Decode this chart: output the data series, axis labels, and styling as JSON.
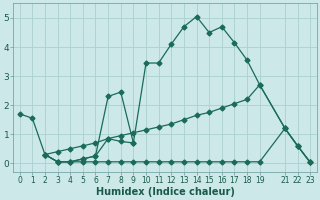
{
  "xlabel": "Humidex (Indice chaleur)",
  "bg_color": "#cce8e8",
  "grid_color": "#aad0d0",
  "line_color": "#1a6b5a",
  "xlim": [
    -0.5,
    23.5
  ],
  "ylim": [
    -0.3,
    5.5
  ],
  "xticks": [
    0,
    1,
    2,
    3,
    4,
    5,
    6,
    7,
    8,
    9,
    10,
    11,
    12,
    13,
    14,
    15,
    16,
    17,
    18,
    19,
    21,
    22,
    23
  ],
  "yticks": [
    0,
    1,
    2,
    3,
    4,
    5
  ],
  "curve1_x": [
    0,
    1,
    2,
    3,
    4,
    5,
    6,
    7,
    8,
    9,
    10,
    11,
    12,
    13,
    14,
    15,
    16,
    17,
    18,
    19,
    21,
    22,
    23
  ],
  "curve1_y": [
    1.7,
    1.55,
    0.3,
    0.05,
    0.05,
    0.15,
    0.25,
    0.85,
    0.75,
    0.7,
    3.45,
    3.45,
    4.1,
    4.7,
    5.05,
    4.5,
    4.7,
    4.15,
    3.55,
    2.7,
    1.2,
    0.6,
    0.03
  ],
  "curve2_x": [
    2,
    3,
    4,
    5,
    6,
    7,
    8,
    9
  ],
  "curve2_y": [
    0.3,
    0.05,
    0.05,
    0.15,
    0.25,
    2.3,
    2.45,
    0.7
  ],
  "curve3_x": [
    2,
    3,
    4,
    5,
    6,
    7,
    8,
    9,
    10,
    11,
    12,
    13,
    14,
    15,
    16,
    17,
    18,
    19,
    21,
    22,
    23
  ],
  "curve3_y": [
    0.3,
    0.4,
    0.5,
    0.6,
    0.7,
    0.85,
    0.95,
    1.05,
    1.15,
    1.25,
    1.35,
    1.5,
    1.65,
    1.75,
    1.9,
    2.05,
    2.2,
    2.7,
    1.2,
    0.6,
    0.03
  ],
  "curve4_x": [
    2,
    3,
    4,
    5,
    6,
    7,
    8,
    9,
    10,
    11,
    12,
    13,
    14,
    15,
    16,
    17,
    18,
    19,
    21,
    22,
    23
  ],
  "curve4_y": [
    0.3,
    0.05,
    0.05,
    0.05,
    0.05,
    0.05,
    0.05,
    0.05,
    0.05,
    0.05,
    0.05,
    0.05,
    0.05,
    0.05,
    0.05,
    0.05,
    0.05,
    0.05,
    1.2,
    0.6,
    0.03
  ]
}
